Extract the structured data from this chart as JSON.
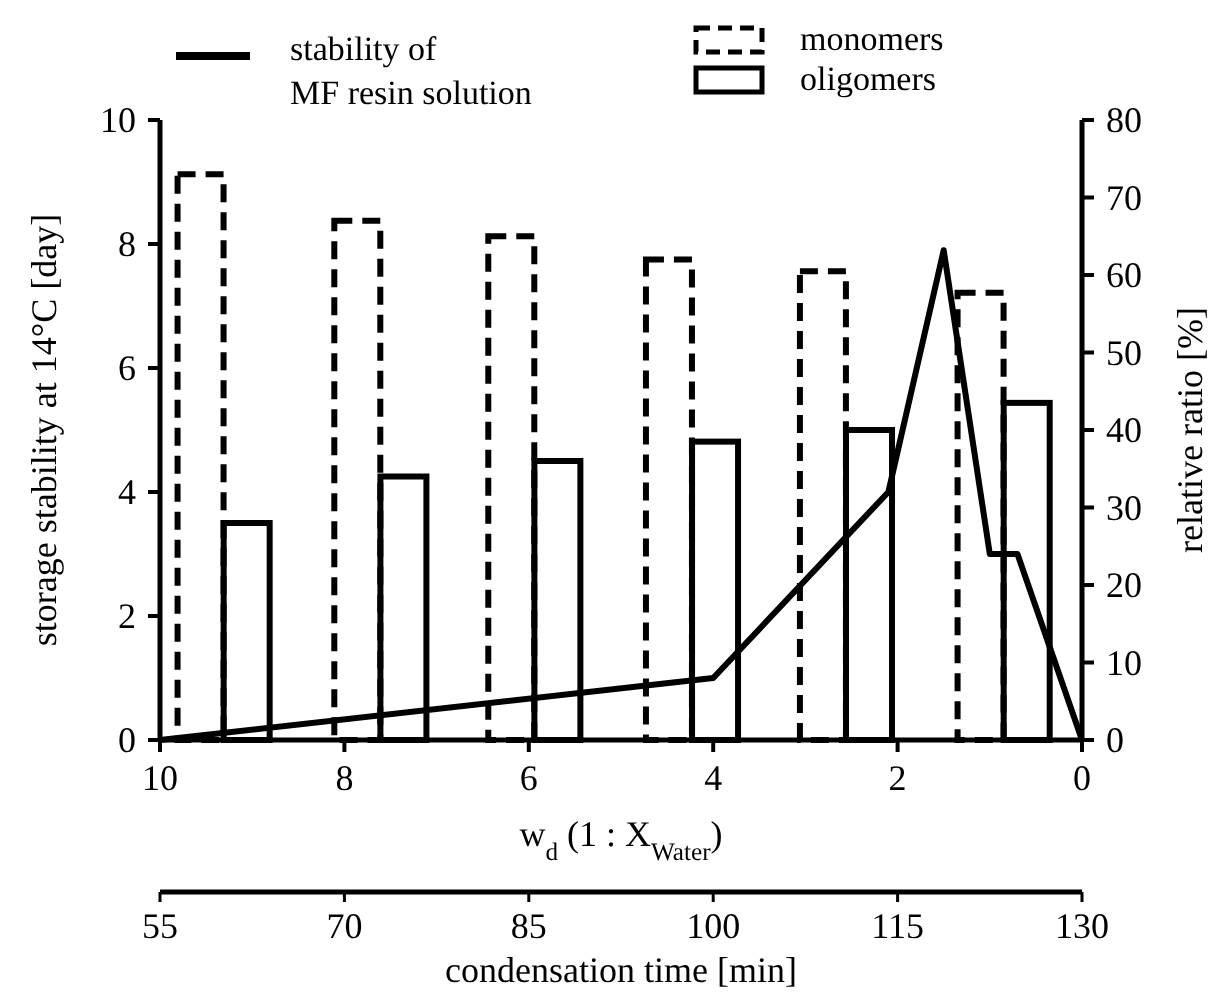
{
  "chart_data": {
    "type": "line",
    "xlabel": "w$_{d}$ (1 : X$_{Water}$)",
    "ylabel": "storage stability at 14°C [day]",
    "y2label": "relative ratio [%]",
    "x2label": "condensation time  [min]",
    "xlim": [
      10,
      0
    ],
    "xticks": [
      10,
      8,
      6,
      4,
      2,
      0
    ],
    "ylim": [
      0,
      10
    ],
    "yticks": [
      0,
      2,
      4,
      6,
      8,
      10
    ],
    "y2lim": [
      0,
      80
    ],
    "y2ticks": [
      0,
      10,
      20,
      30,
      40,
      50,
      60,
      70,
      80
    ],
    "x2lim": [
      55,
      130
    ],
    "x2ticks": [
      55,
      70,
      85,
      100,
      115,
      130
    ],
    "legend": "top",
    "grid": false,
    "marker": "none",
    "series": [
      {
        "name": "stability of MF resin solution",
        "color": "#000000",
        "line_style": "solid",
        "x": [
          10,
          4,
          2.1,
          1.5,
          1.0,
          0.7,
          0
        ],
        "values": [
          0,
          1.0,
          4.0,
          7.9,
          3.0,
          3.0,
          0
        ]
      },
      {
        "name": "monomers",
        "type": "bar",
        "axis": "y2",
        "color": "#000000",
        "line_style": "dashed",
        "x": [
          9.56,
          7.86,
          6.19,
          4.48,
          2.81,
          1.1
        ],
        "values": [
          73,
          67,
          65,
          62,
          60.5,
          57.7
        ]
      },
      {
        "name": "oligomers",
        "type": "bar",
        "axis": "y2",
        "color": "#000000",
        "line_style": "solid",
        "x": [
          9.06,
          7.36,
          5.69,
          3.98,
          2.31,
          0.6
        ],
        "values": [
          28,
          34,
          36,
          38.5,
          40,
          43.5
        ]
      }
    ]
  }
}
